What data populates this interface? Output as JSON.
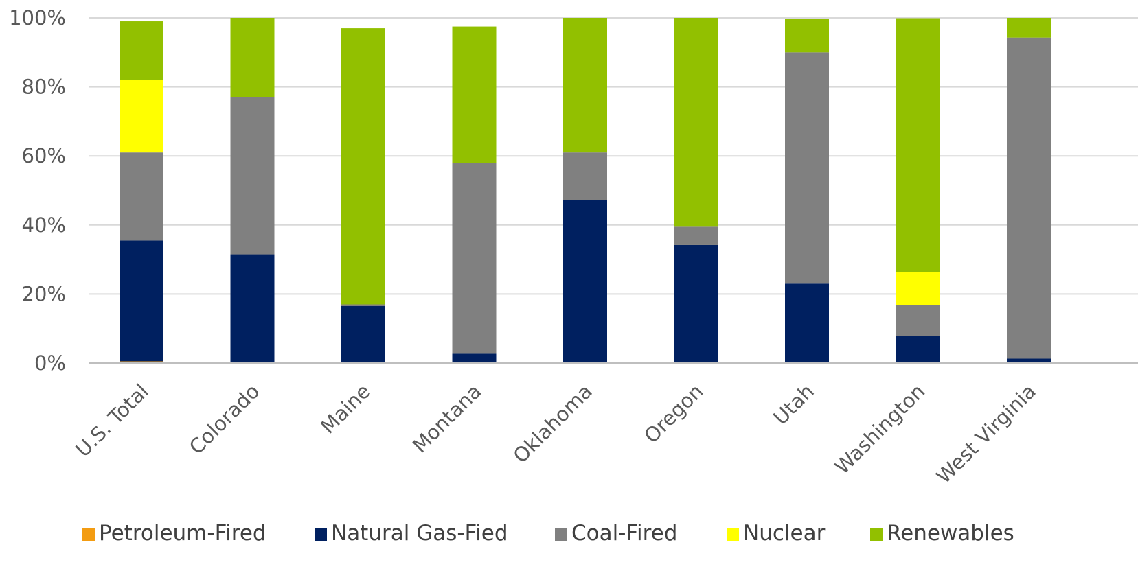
{
  "chart_data": {
    "type": "bar",
    "stacked": true,
    "categories": [
      "U.S. Total",
      "Colorado",
      "Maine",
      "Montana",
      "Oklahoma",
      "Oregon",
      "Utah",
      "Washington",
      "West Virginia"
    ],
    "series": [
      {
        "name": "Petroleum-Fired",
        "color": "#f39c12",
        "values": [
          0.5,
          0,
          0,
          0,
          0,
          0,
          0,
          0,
          0
        ]
      },
      {
        "name": "Natural Gas-Fied",
        "color": "#002060",
        "values": [
          35,
          31.5,
          16.5,
          2.7,
          47.3,
          34.2,
          23,
          7.8,
          1.3
        ]
      },
      {
        "name": "Coal-Fired",
        "color": "#808080",
        "values": [
          25.5,
          45.5,
          0.5,
          55.3,
          13.7,
          5.3,
          67,
          9,
          93
        ]
      },
      {
        "name": "Nuclear",
        "color": "#ffff00",
        "values": [
          21,
          0,
          0,
          0,
          0,
          0,
          0,
          9.6,
          0
        ]
      },
      {
        "name": "Renewables",
        "color": "#92c000",
        "values": [
          17,
          23,
          80,
          39.5,
          39,
          60.5,
          9.7,
          73.5,
          5.7
        ]
      }
    ],
    "y_ticks": [
      "0%",
      "20%",
      "40%",
      "60%",
      "80%",
      "100%"
    ],
    "ylim": [
      0,
      100
    ],
    "grid": true,
    "legend_position": "bottom"
  }
}
